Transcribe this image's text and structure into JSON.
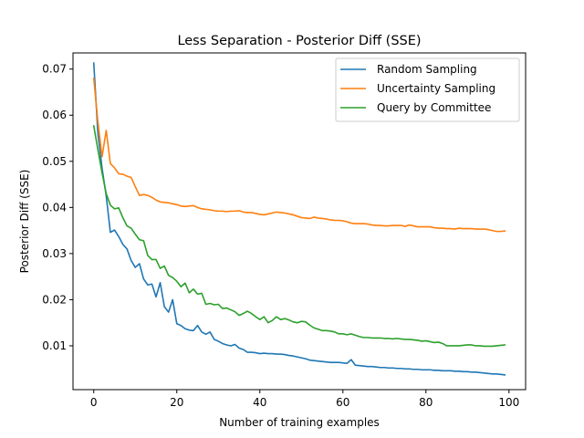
{
  "chart_data": {
    "type": "line",
    "title": "Less Separation - Posterior Diff (SSE)",
    "xlabel": "Number of training examples",
    "ylabel": "Posterior Diff (SSE)",
    "xlim": [
      -5,
      104
    ],
    "ylim": [
      0.0005,
      0.0735
    ],
    "xticks": [
      0,
      20,
      40,
      60,
      80,
      100
    ],
    "xtick_labels": [
      "0",
      "20",
      "40",
      "60",
      "80",
      "100"
    ],
    "yticks": [
      0.01,
      0.02,
      0.03,
      0.04,
      0.05,
      0.06,
      0.07
    ],
    "ytick_labels": [
      "0.01",
      "0.02",
      "0.03",
      "0.04",
      "0.05",
      "0.06",
      "0.07"
    ],
    "grid": false,
    "legend": "top-right",
    "x_start": 0,
    "x_step": 1,
    "series": [
      {
        "name": "Random Sampling",
        "color": "#1f77b4",
        "values": [
          0.0713,
          0.056,
          0.0485,
          0.0425,
          0.0346,
          0.0351,
          0.0337,
          0.032,
          0.031,
          0.0285,
          0.027,
          0.0278,
          0.0245,
          0.0232,
          0.0234,
          0.0206,
          0.0237,
          0.0185,
          0.0173,
          0.02,
          0.0148,
          0.0144,
          0.0137,
          0.0134,
          0.0133,
          0.0144,
          0.013,
          0.0125,
          0.013,
          0.0114,
          0.011,
          0.0105,
          0.0102,
          0.01,
          0.0103,
          0.0095,
          0.0092,
          0.0086,
          0.0086,
          0.0085,
          0.0083,
          0.0084,
          0.0083,
          0.0083,
          0.0082,
          0.0082,
          0.0081,
          0.0079,
          0.0078,
          0.0076,
          0.0074,
          0.0072,
          0.0069,
          0.0068,
          0.0067,
          0.0066,
          0.0065,
          0.0064,
          0.0064,
          0.0064,
          0.0063,
          0.0062,
          0.007,
          0.0058,
          0.0057,
          0.0056,
          0.0055,
          0.0055,
          0.0054,
          0.0053,
          0.0053,
          0.0052,
          0.0052,
          0.0051,
          0.0051,
          0.005,
          0.005,
          0.0049,
          0.0049,
          0.0048,
          0.0048,
          0.0048,
          0.0047,
          0.0047,
          0.0046,
          0.0046,
          0.0046,
          0.0045,
          0.0045,
          0.0044,
          0.0044,
          0.0043,
          0.0043,
          0.0042,
          0.0041,
          0.004,
          0.0039,
          0.0039,
          0.0038,
          0.0037
        ]
      },
      {
        "name": "Uncertainty Sampling",
        "color": "#ff7f0e",
        "values": [
          0.068,
          0.0585,
          0.051,
          0.0567,
          0.0495,
          0.0486,
          0.0473,
          0.0472,
          0.0468,
          0.0465,
          0.0445,
          0.0426,
          0.0428,
          0.0426,
          0.0422,
          0.0416,
          0.0412,
          0.0411,
          0.041,
          0.0408,
          0.0406,
          0.0403,
          0.0402,
          0.0403,
          0.0404,
          0.04,
          0.0397,
          0.0396,
          0.0395,
          0.0393,
          0.0392,
          0.0392,
          0.0391,
          0.0392,
          0.0392,
          0.0393,
          0.039,
          0.0389,
          0.0389,
          0.0387,
          0.0385,
          0.0384,
          0.0386,
          0.0388,
          0.039,
          0.0389,
          0.0388,
          0.0386,
          0.0384,
          0.0381,
          0.0378,
          0.0377,
          0.0376,
          0.0379,
          0.0377,
          0.0376,
          0.0375,
          0.0373,
          0.0372,
          0.0372,
          0.0371,
          0.0369,
          0.0366,
          0.0365,
          0.0365,
          0.0365,
          0.0364,
          0.0362,
          0.0361,
          0.0361,
          0.036,
          0.036,
          0.0361,
          0.0361,
          0.0361,
          0.0359,
          0.0362,
          0.036,
          0.0358,
          0.0358,
          0.0358,
          0.0358,
          0.0356,
          0.0355,
          0.0355,
          0.0354,
          0.0354,
          0.0353,
          0.0355,
          0.0354,
          0.0354,
          0.0354,
          0.0353,
          0.0353,
          0.0353,
          0.0352,
          0.035,
          0.0348,
          0.0348,
          0.0349
        ]
      },
      {
        "name": "Query by Committee",
        "color": "#2ca02c",
        "values": [
          0.0577,
          0.0525,
          0.0475,
          0.043,
          0.0405,
          0.0397,
          0.0399,
          0.0378,
          0.036,
          0.0355,
          0.0342,
          0.033,
          0.0328,
          0.0296,
          0.0287,
          0.0287,
          0.0268,
          0.0273,
          0.0253,
          0.0248,
          0.024,
          0.0228,
          0.0236,
          0.0215,
          0.0223,
          0.0212,
          0.0214,
          0.019,
          0.0192,
          0.0189,
          0.019,
          0.0181,
          0.0182,
          0.0178,
          0.0174,
          0.0166,
          0.017,
          0.0175,
          0.017,
          0.0163,
          0.0157,
          0.0163,
          0.015,
          0.0155,
          0.0163,
          0.0157,
          0.0159,
          0.0156,
          0.0152,
          0.015,
          0.0153,
          0.0152,
          0.0145,
          0.0139,
          0.0136,
          0.0133,
          0.0133,
          0.0132,
          0.013,
          0.0126,
          0.0126,
          0.0124,
          0.0126,
          0.0123,
          0.012,
          0.0118,
          0.0118,
          0.0117,
          0.0117,
          0.0117,
          0.0116,
          0.0116,
          0.0115,
          0.0116,
          0.0115,
          0.0114,
          0.0114,
          0.0113,
          0.0112,
          0.011,
          0.0111,
          0.0109,
          0.0107,
          0.0108,
          0.0105,
          0.01,
          0.01,
          0.01,
          0.01,
          0.0101,
          0.0102,
          0.0102,
          0.01,
          0.01,
          0.0099,
          0.0099,
          0.0099,
          0.01,
          0.0101,
          0.0102
        ]
      }
    ]
  }
}
